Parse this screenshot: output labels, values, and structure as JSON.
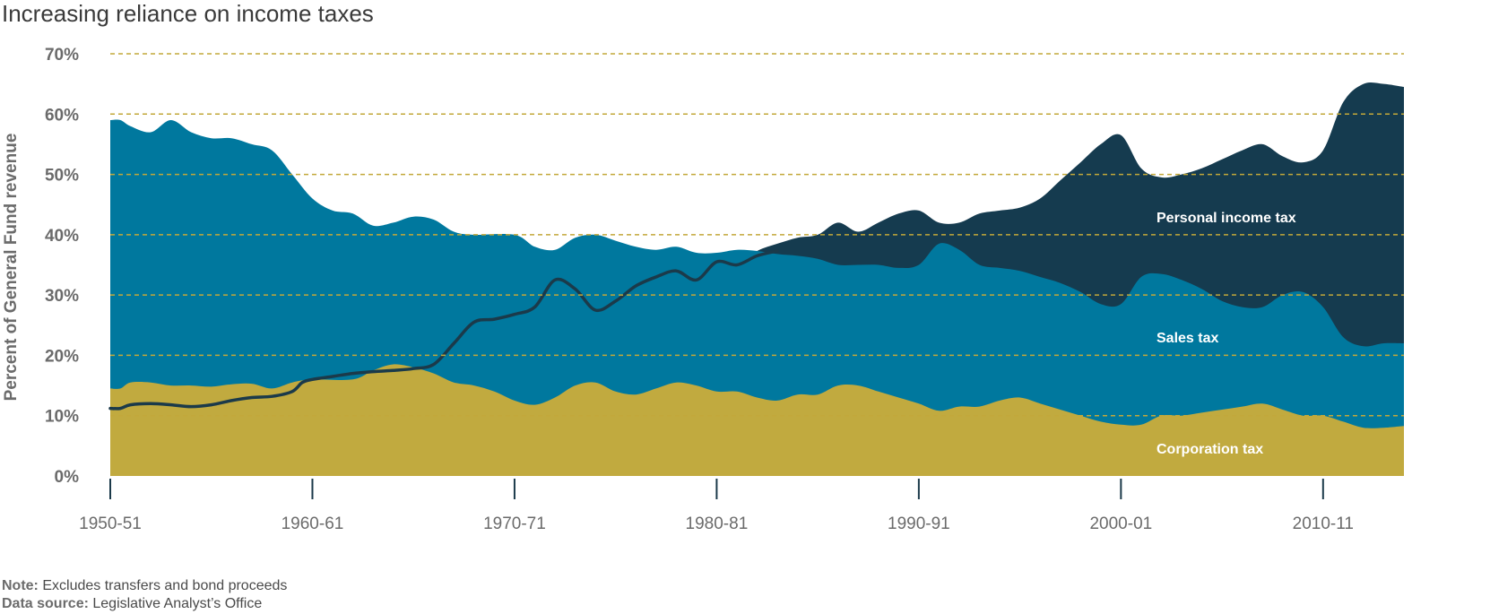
{
  "chart_title": "Increasing reliance on income taxes",
  "note": {
    "label": "Note:",
    "text": "Excludes transfers and bond proceeds"
  },
  "source": {
    "label": "Data source:",
    "text": "Legislative Analyst’s Office"
  },
  "colors": {
    "personal_income": "#153b4f",
    "sales": "#00789e",
    "corporation": "#c1aa3f",
    "line": "#1b3a4a",
    "grid": "#c2a83a",
    "axis": "#1b3a4a"
  },
  "chart_data": {
    "type": "area",
    "ylabel": "Percent of General Fund revenue",
    "ylim": [
      0,
      70
    ],
    "yticks": [
      "0%",
      "10%",
      "20%",
      "30%",
      "40%",
      "50%",
      "60%",
      "70%"
    ],
    "xticks": [
      "1950-51",
      "1960-61",
      "1970-71",
      "1980-81",
      "1990-91",
      "2000-01",
      "2010-11"
    ],
    "grid": true,
    "x_start": 1950,
    "x_end": 2014,
    "series": [
      {
        "name": "Corporation tax",
        "kind": "area",
        "points": [
          [
            1950,
            14.5
          ],
          [
            1950.5,
            14.5
          ],
          [
            1951,
            15.5
          ],
          [
            1952,
            15.5
          ],
          [
            1953,
            15
          ],
          [
            1954,
            15
          ],
          [
            1955,
            14.8
          ],
          [
            1956,
            15.2
          ],
          [
            1957,
            15.3
          ],
          [
            1958,
            14.5
          ],
          [
            1959,
            15.5
          ],
          [
            1960,
            16
          ],
          [
            1962,
            16
          ],
          [
            1963,
            17.5
          ],
          [
            1964,
            18.5
          ],
          [
            1965,
            18
          ],
          [
            1966,
            17
          ],
          [
            1967,
            15.5
          ],
          [
            1968,
            15
          ],
          [
            1969,
            14
          ],
          [
            1970,
            12.5
          ],
          [
            1971,
            11.8
          ],
          [
            1972,
            13
          ],
          [
            1973,
            15
          ],
          [
            1974,
            15.5
          ],
          [
            1975,
            14
          ],
          [
            1976,
            13.5
          ],
          [
            1977,
            14.5
          ],
          [
            1978,
            15.5
          ],
          [
            1979,
            15
          ],
          [
            1980,
            14
          ],
          [
            1981,
            14
          ],
          [
            1982,
            13
          ],
          [
            1983,
            12.5
          ],
          [
            1984,
            13.5
          ],
          [
            1985,
            13.5
          ],
          [
            1986,
            15
          ],
          [
            1987,
            15
          ],
          [
            1988,
            14
          ],
          [
            1989,
            13
          ],
          [
            1990,
            12
          ],
          [
            1991,
            10.8
          ],
          [
            1992,
            11.5
          ],
          [
            1993,
            11.5
          ],
          [
            1994,
            12.5
          ],
          [
            1995,
            13
          ],
          [
            1996,
            12
          ],
          [
            1997,
            11
          ],
          [
            1998,
            10
          ],
          [
            1999,
            9
          ],
          [
            2000,
            8.5
          ],
          [
            2001,
            8.5
          ],
          [
            2002,
            10
          ],
          [
            2003,
            10
          ],
          [
            2004,
            10.5
          ],
          [
            2005,
            11
          ],
          [
            2006,
            11.5
          ],
          [
            2007,
            12
          ],
          [
            2008,
            11
          ],
          [
            2009,
            10
          ],
          [
            2010,
            10
          ],
          [
            2011,
            9
          ],
          [
            2012,
            8
          ],
          [
            2013,
            8
          ],
          [
            2014,
            8.3
          ]
        ]
      },
      {
        "name": "Sales tax",
        "kind": "area",
        "points": [
          [
            1950,
            59
          ],
          [
            1950.5,
            59
          ],
          [
            1951,
            58
          ],
          [
            1952,
            57
          ],
          [
            1953,
            59
          ],
          [
            1954,
            57
          ],
          [
            1955,
            56
          ],
          [
            1956,
            56
          ],
          [
            1957,
            55
          ],
          [
            1958,
            54
          ],
          [
            1959,
            50
          ],
          [
            1960,
            46
          ],
          [
            1961,
            44
          ],
          [
            1962,
            43.5
          ],
          [
            1963,
            41.5
          ],
          [
            1964,
            42
          ],
          [
            1965,
            43
          ],
          [
            1966,
            42.5
          ],
          [
            1967,
            40.5
          ],
          [
            1968,
            40
          ],
          [
            1970,
            40
          ],
          [
            1971,
            38
          ],
          [
            1972,
            37.5
          ],
          [
            1973,
            39.5
          ],
          [
            1974,
            40
          ],
          [
            1975,
            39
          ],
          [
            1976,
            38
          ],
          [
            1977,
            37.5
          ],
          [
            1978,
            38
          ],
          [
            1979,
            37
          ],
          [
            1980,
            37
          ],
          [
            1981,
            37.5
          ],
          [
            1982,
            37.3
          ],
          [
            1983,
            36.8
          ],
          [
            1984,
            36.5
          ],
          [
            1985,
            36
          ],
          [
            1986,
            35
          ],
          [
            1987,
            35
          ],
          [
            1988,
            35
          ],
          [
            1989,
            34.5
          ],
          [
            1990,
            35
          ],
          [
            1991,
            38.5
          ],
          [
            1992,
            37.5
          ],
          [
            1993,
            35
          ],
          [
            1994,
            34.5
          ],
          [
            1995,
            34
          ],
          [
            1996,
            33
          ],
          [
            1997,
            32
          ],
          [
            1998,
            30.5
          ],
          [
            1999,
            28.5
          ],
          [
            2000,
            28.5
          ],
          [
            2001,
            33
          ],
          [
            2002,
            33.5
          ],
          [
            2003,
            32.5
          ],
          [
            2004,
            31
          ],
          [
            2005,
            29
          ],
          [
            2006,
            28
          ],
          [
            2007,
            28
          ],
          [
            2008,
            30
          ],
          [
            2009,
            30.5
          ],
          [
            2010,
            28
          ],
          [
            2011,
            23
          ],
          [
            2012,
            21.5
          ],
          [
            2013,
            22
          ],
          [
            2014,
            22
          ]
        ]
      },
      {
        "name": "Personal income tax",
        "kind": "area",
        "points": [
          [
            1982,
            37.3
          ],
          [
            1983,
            38.5
          ],
          [
            1984,
            39.5
          ],
          [
            1985,
            40
          ],
          [
            1986,
            42
          ],
          [
            1987,
            40.5
          ],
          [
            1988,
            42
          ],
          [
            1989,
            43.5
          ],
          [
            1990,
            44
          ],
          [
            1991,
            42
          ],
          [
            1992,
            42
          ],
          [
            1993,
            43.5
          ],
          [
            1994,
            44
          ],
          [
            1995,
            44.5
          ],
          [
            1996,
            46
          ],
          [
            1997,
            49
          ],
          [
            1998,
            52
          ],
          [
            1999,
            55
          ],
          [
            2000,
            56.5
          ],
          [
            2001,
            51
          ],
          [
            2002,
            49.5
          ],
          [
            2003,
            50
          ],
          [
            2004,
            51
          ],
          [
            2005,
            52.5
          ],
          [
            2006,
            54
          ],
          [
            2007,
            55
          ],
          [
            2008,
            53
          ],
          [
            2009,
            52
          ],
          [
            2010,
            54
          ],
          [
            2011,
            62
          ],
          [
            2012,
            65
          ],
          [
            2013,
            65
          ],
          [
            2014,
            64.5
          ]
        ]
      },
      {
        "name": "Personal income tax share",
        "kind": "line",
        "points": [
          [
            1950,
            11.2
          ],
          [
            1950.5,
            11.2
          ],
          [
            1951,
            11.8
          ],
          [
            1952,
            12
          ],
          [
            1953,
            11.8
          ],
          [
            1954,
            11.5
          ],
          [
            1955,
            11.8
          ],
          [
            1956,
            12.5
          ],
          [
            1957,
            13
          ],
          [
            1958,
            13.2
          ],
          [
            1959,
            14
          ],
          [
            1959.5,
            15.5
          ],
          [
            1960,
            16
          ],
          [
            1961,
            16.5
          ],
          [
            1962,
            17
          ],
          [
            1963,
            17.3
          ],
          [
            1964,
            17.5
          ],
          [
            1965,
            17.8
          ],
          [
            1966,
            18.5
          ],
          [
            1967,
            22
          ],
          [
            1968,
            25.5
          ],
          [
            1969,
            26
          ],
          [
            1970,
            26.8
          ],
          [
            1971,
            28
          ],
          [
            1972,
            32.5
          ],
          [
            1973,
            31
          ],
          [
            1974,
            27.5
          ],
          [
            1975,
            29
          ],
          [
            1976,
            31.5
          ],
          [
            1977,
            33
          ],
          [
            1978,
            34
          ],
          [
            1979,
            32.5
          ],
          [
            1980,
            35.5
          ],
          [
            1981,
            35
          ],
          [
            1982,
            36.5
          ],
          [
            1983,
            37.3
          ]
        ]
      }
    ],
    "labels": {
      "personal_income": "Personal income tax",
      "sales": "Sales tax",
      "corporation": "Corporation tax"
    }
  }
}
